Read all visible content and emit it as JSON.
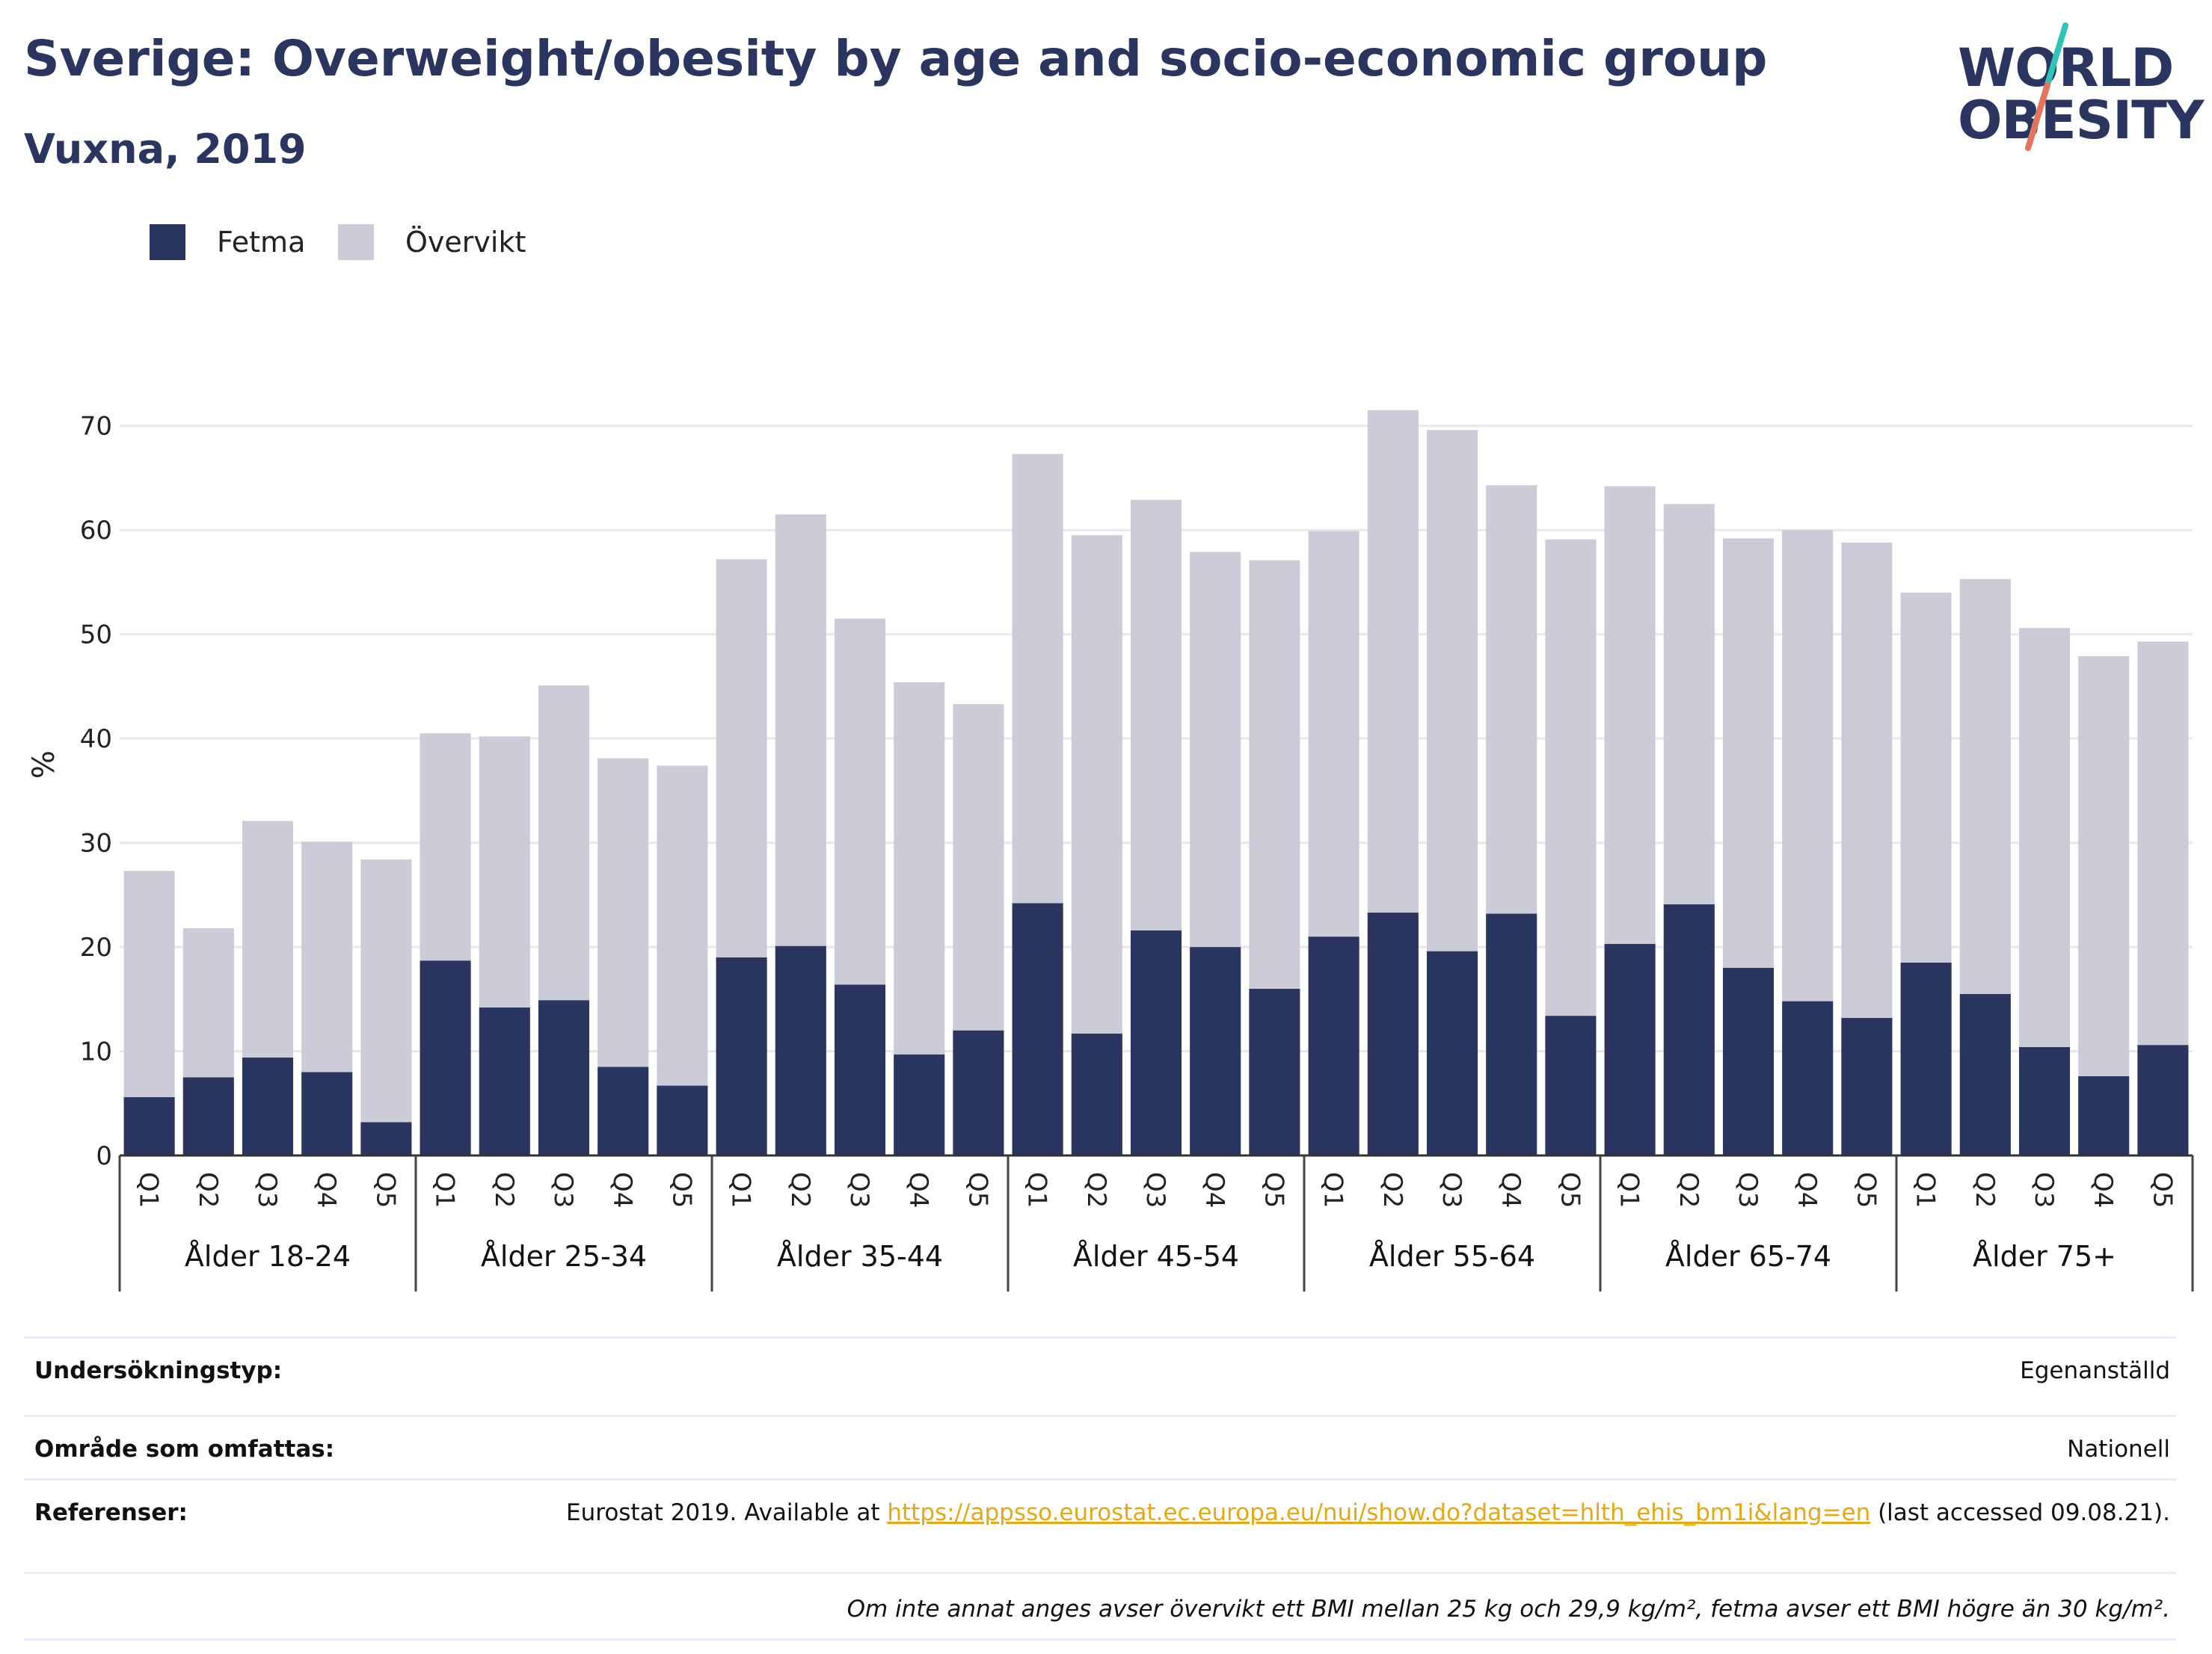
{
  "title": "Sverige: Overweight/obesity by age and socio-economic group",
  "subtitle": "Vuxna, 2019",
  "logo": {
    "line1": "WORLD",
    "line2": "OBESITY",
    "slash_colors": [
      "#2ec4b6",
      "#e8725c"
    ]
  },
  "colors": {
    "fetma": "#2a3560",
    "overvikt": "#cbccd8",
    "title": "#2a3560",
    "link": "#e5a714"
  },
  "legend": [
    {
      "label": "Fetma",
      "color": "#2a3560"
    },
    {
      "label": "Övervikt",
      "color": "#cbccd8"
    }
  ],
  "chart_data": {
    "type": "bar",
    "stacked": true,
    "ylabel": "%",
    "ylim": [
      0,
      75
    ],
    "yticks": [
      0,
      10,
      20,
      30,
      40,
      50,
      60,
      70
    ],
    "grid": true,
    "legend_position": "top-left",
    "groups": [
      "Ålder 18-24",
      "Ålder 25-34",
      "Ålder 35-44",
      "Ålder 45-54",
      "Ålder 55-64",
      "Ålder 65-74",
      "Ålder 75+"
    ],
    "categories": [
      "Q1",
      "Q2",
      "Q3",
      "Q4",
      "Q5"
    ],
    "series": [
      {
        "name": "Fetma",
        "color": "#2a3560",
        "values": [
          [
            5.6,
            7.5,
            9.4,
            8.0,
            3.2
          ],
          [
            18.7,
            14.2,
            14.9,
            8.5,
            6.7
          ],
          [
            19.0,
            20.1,
            16.4,
            9.7,
            12.0
          ],
          [
            24.2,
            11.7,
            21.6,
            20.0,
            16.0
          ],
          [
            21.0,
            23.3,
            19.6,
            23.2,
            13.4
          ],
          [
            20.3,
            24.1,
            18.0,
            14.8,
            13.2
          ],
          [
            18.5,
            15.5,
            10.4,
            7.6,
            10.6
          ]
        ]
      },
      {
        "name": "Övervikt",
        "color": "#cbccd8",
        "values": [
          [
            21.7,
            14.3,
            22.7,
            22.1,
            25.2
          ],
          [
            21.8,
            26.0,
            30.2,
            29.6,
            30.7
          ],
          [
            38.2,
            41.4,
            35.1,
            35.7,
            31.3
          ],
          [
            43.1,
            47.8,
            41.3,
            37.9,
            41.1
          ],
          [
            38.9,
            48.2,
            50.0,
            41.1,
            45.7
          ],
          [
            43.9,
            38.4,
            41.2,
            45.2,
            45.6
          ],
          [
            35.5,
            39.8,
            40.2,
            40.3,
            38.7
          ]
        ]
      }
    ]
  },
  "info": [
    {
      "label": "Undersökningstyp:",
      "value": "Egenanställd"
    },
    {
      "label": "Område som omfattas:",
      "value": "Nationell"
    },
    {
      "label": "Referenser:",
      "value_prefix": "Eurostat 2019. Available at ",
      "link": "https://appsso.eurostat.ec.europa.eu/nui/show.do?dataset=hlth_ehis_bm1i&lang=en",
      "value_suffix": " (last accessed 09.08.21)."
    }
  ],
  "footnote": "Om inte annat anges avser övervikt ett BMI mellan 25 kg och 29,9 kg/m², fetma avser ett BMI högre än 30 kg/m²."
}
